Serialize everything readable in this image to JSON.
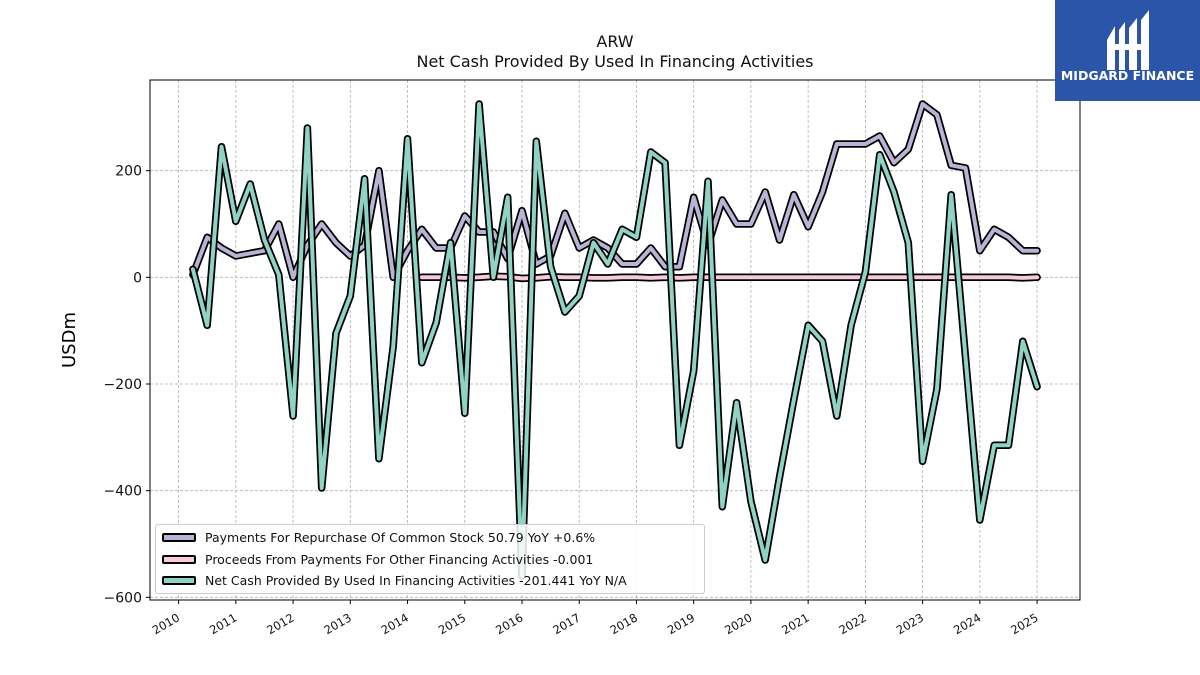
{
  "title": "ARW",
  "subtitle": "Net Cash Provided By Used In Financing Activities",
  "logo": {
    "brand": "MIDGARD FINANCE",
    "color": "#2b55a8"
  },
  "chart_data": {
    "type": "line",
    "title": "ARW",
    "subtitle": "Net Cash Provided By Used In Financing Activities",
    "xlabel": "",
    "ylabel": "USDm",
    "xlim": [
      2009.5,
      2025.75
    ],
    "ylim": [
      -605,
      370
    ],
    "yticks": [
      200,
      0,
      -200,
      -400,
      -600
    ],
    "ytick_labels": [
      "200",
      "0",
      "−200",
      "−400",
      "−600"
    ],
    "xticks": [
      "2010",
      "2011",
      "2012",
      "2013",
      "2014",
      "2015",
      "2016",
      "2017",
      "2018",
      "2019",
      "2020",
      "2021",
      "2022",
      "2023",
      "2024",
      "2025"
    ],
    "grid": true,
    "legend_position": "lower-left",
    "series": [
      {
        "name": "Payments For Repurchase Of Common Stock",
        "legend": "Payments For Repurchase Of Common Stock  50.79 YoY +0.6%",
        "color": "#b9b4d6",
        "x": [
          2010.25,
          2010.5,
          2010.75,
          2011.0,
          2011.25,
          2011.5,
          2011.75,
          2012.0,
          2012.25,
          2012.5,
          2012.75,
          2013.0,
          2013.25,
          2013.5,
          2013.75,
          2014.0,
          2014.25,
          2014.5,
          2014.75,
          2015.0,
          2015.25,
          2015.5,
          2015.75,
          2016.0,
          2016.25,
          2016.5,
          2016.75,
          2017.0,
          2017.25,
          2017.5,
          2017.75,
          2018.0,
          2018.25,
          2018.5,
          2018.75,
          2019.0,
          2019.25,
          2019.5,
          2019.75,
          2020.0,
          2020.25,
          2020.5,
          2020.75,
          2021.0,
          2021.25,
          2021.5,
          2021.75,
          2022.0,
          2022.25,
          2022.5,
          2022.75,
          2023.0,
          2023.25,
          2023.5,
          2023.75,
          2024.0,
          2024.25,
          2024.5,
          2024.75,
          2025.0
        ],
        "values": [
          5,
          75,
          55,
          40,
          45,
          50,
          100,
          0,
          60,
          100,
          65,
          40,
          60,
          200,
          0,
          50,
          90,
          55,
          55,
          115,
          85,
          85,
          35,
          125,
          25,
          40,
          120,
          55,
          70,
          55,
          25,
          25,
          55,
          20,
          20,
          150,
          60,
          145,
          100,
          100,
          160,
          70,
          155,
          95,
          160,
          250,
          250,
          250,
          265,
          215,
          240,
          325,
          305,
          210,
          205,
          50,
          90,
          75,
          50,
          50
        ]
      },
      {
        "name": "Proceeds From Payments For Other Financing Activities",
        "legend": "Proceeds From Payments For Other Financing Activities  -0.001",
        "color": "#f9c9dc",
        "x": [
          2014.25,
          2014.5,
          2014.75,
          2015.0,
          2015.25,
          2015.5,
          2015.75,
          2016.0,
          2016.25,
          2016.5,
          2016.75,
          2017.0,
          2017.25,
          2017.5,
          2017.75,
          2018.0,
          2018.25,
          2018.5,
          2018.75,
          2019.0,
          2019.25,
          2019.5,
          2019.75,
          2020.0,
          2020.25,
          2020.5,
          2020.75,
          2021.0,
          2021.25,
          2021.5,
          2021.75,
          2022.0,
          2022.25,
          2022.5,
          2022.75,
          2023.0,
          2023.25,
          2023.5,
          2023.75,
          2024.0,
          2024.25,
          2024.5,
          2024.75,
          2025.0
        ],
        "values": [
          0,
          0,
          0,
          -1,
          0,
          2,
          1,
          -2,
          -1,
          1,
          0,
          0,
          -1,
          -1,
          0,
          0,
          -1,
          0,
          -1,
          0,
          0,
          0,
          0,
          0,
          0,
          0,
          0,
          0,
          0,
          0,
          0,
          0,
          0,
          0,
          0,
          0,
          0,
          0,
          0,
          0,
          0,
          0,
          -1,
          0
        ]
      },
      {
        "name": "Net Cash Provided By Used In Financing Activities",
        "legend": "Net Cash Provided By Used In Financing Activities  -201.441 YoY N/A",
        "color": "#8fd3c4",
        "x": [
          2010.25,
          2010.5,
          2010.75,
          2011.0,
          2011.25,
          2011.5,
          2011.75,
          2012.0,
          2012.25,
          2012.5,
          2012.75,
          2013.0,
          2013.25,
          2013.5,
          2013.75,
          2014.0,
          2014.25,
          2014.5,
          2014.75,
          2015.0,
          2015.25,
          2015.5,
          2015.75,
          2016.0,
          2016.25,
          2016.5,
          2016.75,
          2017.0,
          2017.25,
          2017.5,
          2017.75,
          2018.0,
          2018.25,
          2018.5,
          2018.75,
          2019.0,
          2019.25,
          2019.5,
          2019.75,
          2020.0,
          2020.25,
          2020.5,
          2020.75,
          2021.0,
          2021.25,
          2021.5,
          2021.75,
          2022.0,
          2022.25,
          2022.5,
          2022.75,
          2023.0,
          2023.25,
          2023.5,
          2023.75,
          2024.0,
          2024.25,
          2024.5,
          2024.75,
          2025.0
        ],
        "values": [
          15,
          -90,
          245,
          105,
          175,
          70,
          5,
          -260,
          280,
          -395,
          -105,
          -35,
          185,
          -340,
          -130,
          260,
          -160,
          -85,
          65,
          -255,
          325,
          0,
          150,
          -560,
          255,
          20,
          -65,
          -35,
          65,
          25,
          90,
          75,
          235,
          215,
          -315,
          -175,
          180,
          -430,
          -235,
          -420,
          -530,
          -375,
          -230,
          -90,
          -120,
          -260,
          -90,
          10,
          230,
          160,
          65,
          -345,
          -210,
          155,
          -150,
          -455,
          -315,
          -315,
          -120,
          -205
        ]
      }
    ]
  }
}
